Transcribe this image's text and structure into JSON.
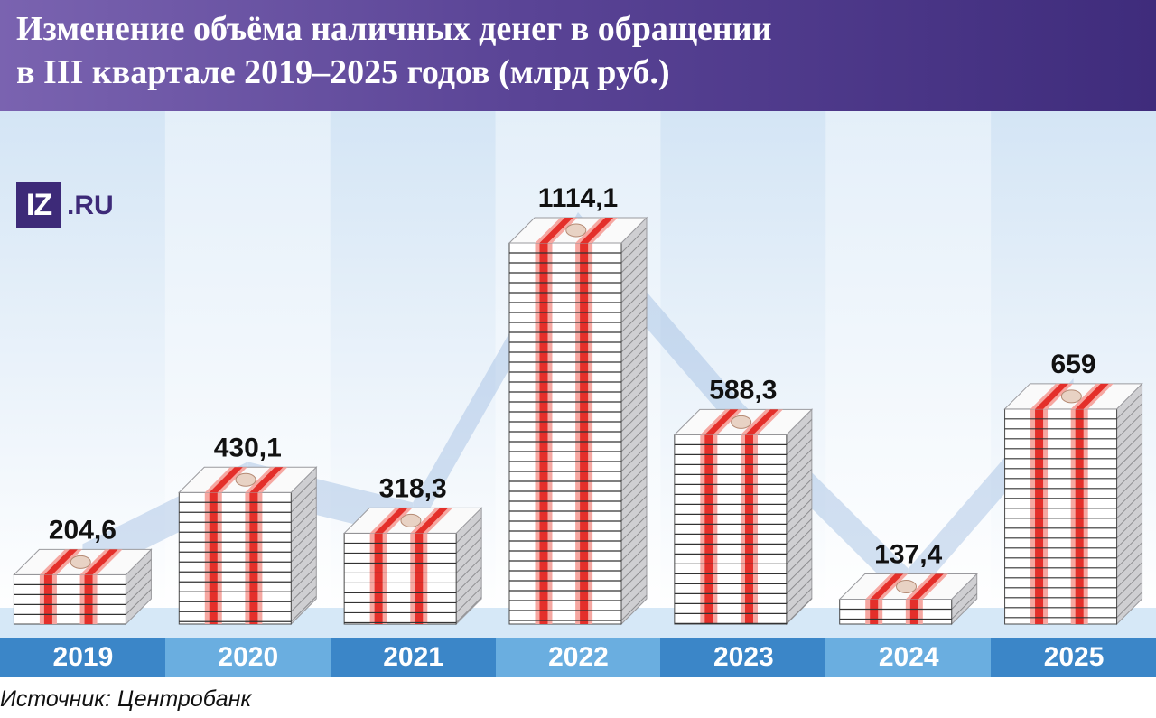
{
  "header": {
    "title_line1": "Изменение объёма наличных денег в обращении",
    "title_line2": "в III квартале 2019–2025 годов (млрд руб.)"
  },
  "logo": {
    "box_text": "IZ",
    "suffix": ".RU"
  },
  "source": "Источник: Центробанк",
  "colors": {
    "header_left": "#7a63b0",
    "header_right": "#3f2c7c",
    "year_dark": "#3b86c8",
    "year_light": "#6aaee0",
    "band": "#c9dcf0",
    "band_stripe": "#e4eff9",
    "strap_red": "#e42f2a",
    "strap_pink": "#f6a7a1"
  },
  "chart_data": {
    "type": "bar",
    "title": "Изменение объёма наличных денег в обращении в III квартале 2019–2025 годов (млрд руб.)",
    "categories": [
      "2019",
      "2020",
      "2021",
      "2022",
      "2023",
      "2024",
      "2025"
    ],
    "values": [
      204.6,
      430.1,
      318.3,
      1114.1,
      588.3,
      137.4,
      659
    ],
    "value_labels": [
      "204,6",
      "430,1",
      "318,3",
      "1114,1",
      "588,3",
      "137,4",
      "659"
    ],
    "ylabel": "млрд руб.",
    "ylim": [
      0,
      1114.1
    ],
    "grid": false,
    "legend": "none"
  }
}
